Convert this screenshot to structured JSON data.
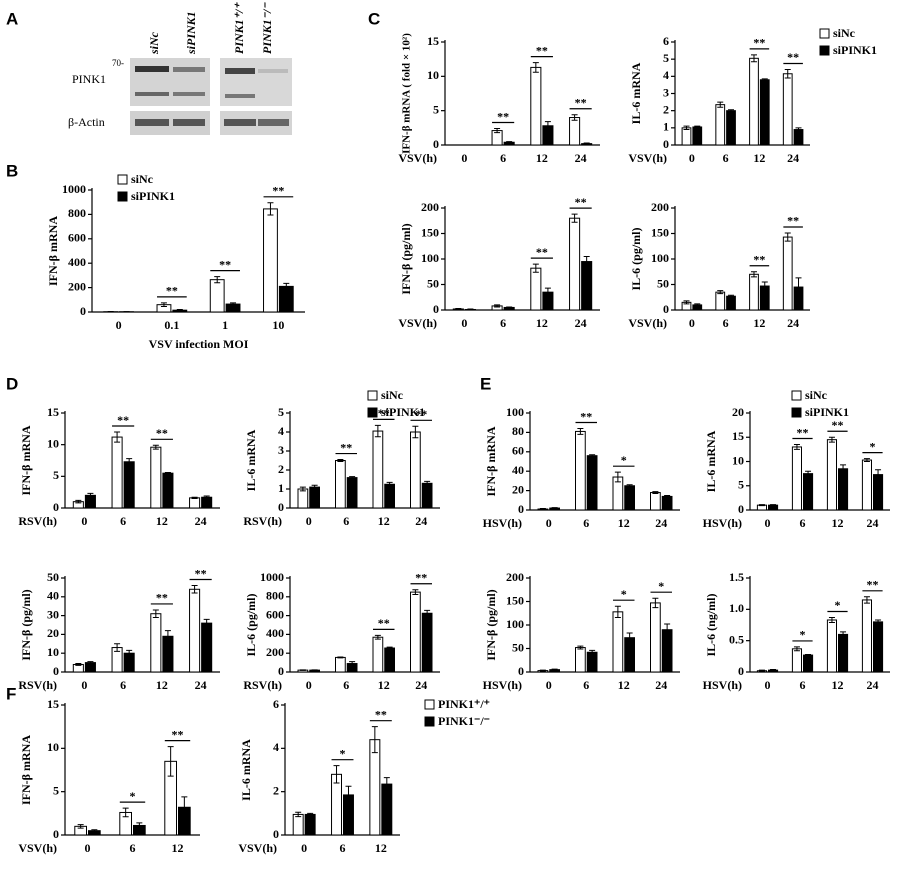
{
  "panels": [
    "A",
    "B",
    "C",
    "D",
    "E",
    "F"
  ],
  "blot": {
    "lanes": [
      "siNc",
      "siPINK1",
      "PINK1⁺/⁺",
      "PINK1⁻/⁻"
    ],
    "rows": [
      "PINK1",
      "β-Actin"
    ],
    "marker": "70-"
  },
  "chart_data": [
    {
      "type": "bar",
      "ylabel": "IFN-β mRNA",
      "xlabel": "VSV infection MOI",
      "categories": [
        "0",
        "0.1",
        "1",
        "10"
      ],
      "series": [
        {
          "name": "siNc",
          "color": "#ffffff",
          "values": [
            2,
            60,
            265,
            845
          ],
          "errors": [
            2,
            15,
            25,
            50
          ]
        },
        {
          "name": "siPINK1",
          "color": "#000000",
          "values": [
            2,
            15,
            65,
            210
          ],
          "errors": [
            1,
            5,
            10,
            25
          ]
        }
      ],
      "ylim": [
        0,
        1000
      ],
      "yticks": [
        0,
        200,
        400,
        600,
        800,
        1000
      ],
      "significance": [
        {
          "index": 1,
          "label": "**"
        },
        {
          "index": 2,
          "label": "**"
        },
        {
          "index": 3,
          "label": "**"
        }
      ],
      "legend": "upper left"
    },
    {
      "type": "bar",
      "ylabel": "IFN-β mRNA ( fold × 10²)",
      "xlabel": "VSV(h)",
      "categories": [
        "0",
        "6",
        "12",
        "24"
      ],
      "series": [
        {
          "name": "siNc",
          "color": "#ffffff",
          "values": [
            0,
            2.1,
            11.3,
            4.0
          ],
          "errors": [
            0,
            0.3,
            0.7,
            0.4
          ]
        },
        {
          "name": "siPINK1",
          "color": "#000000",
          "values": [
            0,
            0.4,
            2.8,
            0.2
          ],
          "errors": [
            0,
            0.1,
            0.6,
            0.1
          ]
        }
      ],
      "ylim": [
        0,
        15
      ],
      "yticks": [
        0,
        5,
        10,
        15
      ],
      "significance": [
        {
          "index": 1,
          "label": "**"
        },
        {
          "index": 2,
          "label": "**"
        },
        {
          "index": 3,
          "label": "**"
        }
      ]
    },
    {
      "type": "bar",
      "ylabel": "IL-6 mRNA",
      "xlabel": "VSV(h)",
      "categories": [
        "0",
        "6",
        "12",
        "24"
      ],
      "series": [
        {
          "name": "siNc",
          "color": "#ffffff",
          "values": [
            1.0,
            2.35,
            5.05,
            4.15
          ],
          "errors": [
            0.1,
            0.15,
            0.2,
            0.25
          ]
        },
        {
          "name": "siPINK1",
          "color": "#000000",
          "values": [
            1.05,
            2.0,
            3.8,
            0.9
          ],
          "errors": [
            0.05,
            0.05,
            0.05,
            0.1
          ]
        }
      ],
      "ylim": [
        0,
        6
      ],
      "yticks": [
        0,
        1,
        2,
        3,
        4,
        5,
        6
      ],
      "significance": [
        {
          "index": 2,
          "label": "**"
        },
        {
          "index": 3,
          "label": "**"
        }
      ],
      "legend": "upper right"
    },
    {
      "type": "bar",
      "ylabel": "IFN-β (pg/ml)",
      "xlabel": "VSV(h)",
      "categories": [
        "0",
        "6",
        "12",
        "24"
      ],
      "series": [
        {
          "name": "siNc",
          "color": "#ffffff",
          "values": [
            2,
            8,
            82,
            180
          ],
          "errors": [
            1,
            2,
            8,
            8
          ]
        },
        {
          "name": "siPINK1",
          "color": "#000000",
          "values": [
            1,
            5,
            35,
            95
          ],
          "errors": [
            1,
            1,
            8,
            10
          ]
        }
      ],
      "ylim": [
        0,
        200
      ],
      "yticks": [
        0,
        50,
        100,
        150,
        200
      ],
      "significance": [
        {
          "index": 2,
          "label": "**"
        },
        {
          "index": 3,
          "label": "**"
        }
      ]
    },
    {
      "type": "bar",
      "ylabel": "IL-6 (pg/ml)",
      "xlabel": "VSV(h)",
      "categories": [
        "0",
        "6",
        "12",
        "24"
      ],
      "series": [
        {
          "name": "siNc",
          "color": "#ffffff",
          "values": [
            15,
            35,
            70,
            143
          ],
          "errors": [
            3,
            3,
            5,
            8
          ]
        },
        {
          "name": "siPINK1",
          "color": "#000000",
          "values": [
            10,
            27,
            47,
            45
          ],
          "errors": [
            2,
            2,
            8,
            18
          ]
        }
      ],
      "ylim": [
        0,
        200
      ],
      "yticks": [
        0,
        50,
        100,
        150,
        200
      ],
      "significance": [
        {
          "index": 2,
          "label": "**"
        },
        {
          "index": 3,
          "label": "**"
        }
      ]
    },
    {
      "type": "bar",
      "ylabel": "IFN-β mRNA",
      "xlabel": "RSV(h)",
      "categories": [
        "0",
        "6",
        "12",
        "24"
      ],
      "series": [
        {
          "name": "siNc",
          "color": "#ffffff",
          "values": [
            1.0,
            11.2,
            9.6,
            1.6
          ],
          "errors": [
            0.2,
            0.8,
            0.3,
            0.1
          ]
        },
        {
          "name": "siPINK1",
          "color": "#000000",
          "values": [
            2.0,
            7.3,
            5.5,
            1.7
          ],
          "errors": [
            0.3,
            0.5,
            0.1,
            0.2
          ]
        }
      ],
      "ylim": [
        0,
        15
      ],
      "yticks": [
        0,
        5,
        10,
        15
      ],
      "significance": [
        {
          "index": 1,
          "label": "**"
        },
        {
          "index": 2,
          "label": "**"
        }
      ]
    },
    {
      "type": "bar",
      "ylabel": "IL-6 mRNA",
      "xlabel": "RSV(h)",
      "categories": [
        "0",
        "6",
        "12",
        "24"
      ],
      "series": [
        {
          "name": "siNc",
          "color": "#ffffff",
          "values": [
            1.0,
            2.5,
            4.05,
            4.0
          ],
          "errors": [
            0.1,
            0.05,
            0.3,
            0.3
          ]
        },
        {
          "name": "siPINK1",
          "color": "#000000",
          "values": [
            1.1,
            1.6,
            1.25,
            1.3
          ],
          "errors": [
            0.1,
            0.05,
            0.1,
            0.1
          ]
        }
      ],
      "ylim": [
        0,
        5
      ],
      "yticks": [
        0,
        1,
        2,
        3,
        4,
        5
      ],
      "significance": [
        {
          "index": 1,
          "label": "**"
        },
        {
          "index": 2,
          "label": "**"
        },
        {
          "index": 3,
          "label": "**"
        }
      ],
      "legend": "upper right"
    },
    {
      "type": "bar",
      "ylabel": "IFN-β (pg/ml)",
      "xlabel": "RSV(h)",
      "categories": [
        "0",
        "6",
        "12",
        "24"
      ],
      "series": [
        {
          "name": "siNc",
          "color": "#ffffff",
          "values": [
            4,
            13,
            31,
            44
          ],
          "errors": [
            0.5,
            2,
            2,
            2
          ]
        },
        {
          "name": "siPINK1",
          "color": "#000000",
          "values": [
            5,
            10,
            19,
            26
          ],
          "errors": [
            0.5,
            1.5,
            3,
            2
          ]
        }
      ],
      "ylim": [
        0,
        50
      ],
      "yticks": [
        0,
        10,
        20,
        30,
        40,
        50
      ],
      "significance": [
        {
          "index": 2,
          "label": "**"
        },
        {
          "index": 3,
          "label": "**"
        }
      ]
    },
    {
      "type": "bar",
      "ylabel": "IL-6 (pg/ml)",
      "xlabel": "RSV(h)",
      "categories": [
        "0",
        "6",
        "12",
        "24"
      ],
      "series": [
        {
          "name": "siNc",
          "color": "#ffffff",
          "values": [
            20,
            155,
            370,
            850
          ],
          "errors": [
            3,
            5,
            20,
            25
          ]
        },
        {
          "name": "siPINK1",
          "color": "#000000",
          "values": [
            20,
            90,
            255,
            625
          ],
          "errors": [
            3,
            20,
            10,
            30
          ]
        }
      ],
      "ylim": [
        0,
        1000
      ],
      "yticks": [
        0,
        200,
        400,
        600,
        800,
        1000
      ],
      "significance": [
        {
          "index": 2,
          "label": "**"
        },
        {
          "index": 3,
          "label": "**"
        }
      ]
    },
    {
      "type": "bar",
      "ylabel": "IFN-β mRNA",
      "xlabel": "HSV(h)",
      "categories": [
        "0",
        "6",
        "12",
        "24"
      ],
      "series": [
        {
          "name": "siNc",
          "color": "#ffffff",
          "values": [
            1,
            81,
            34,
            18
          ],
          "errors": [
            0.5,
            3,
            5,
            1
          ]
        },
        {
          "name": "siPINK1",
          "color": "#000000",
          "values": [
            2,
            56,
            25,
            14
          ],
          "errors": [
            0.5,
            1,
            1,
            1
          ]
        }
      ],
      "ylim": [
        0,
        100
      ],
      "yticks": [
        0,
        20,
        40,
        60,
        80,
        100
      ],
      "significance": [
        {
          "index": 1,
          "label": "**"
        },
        {
          "index": 2,
          "label": "*"
        }
      ]
    },
    {
      "type": "bar",
      "ylabel": "IL-6 mRNA",
      "xlabel": "HSV(h)",
      "categories": [
        "0",
        "6",
        "12",
        "24"
      ],
      "series": [
        {
          "name": "siNc",
          "color": "#ffffff",
          "values": [
            1,
            13,
            14.5,
            10.3
          ],
          "errors": [
            0.1,
            0.5,
            0.5,
            0.3
          ]
        },
        {
          "name": "siPINK1",
          "color": "#000000",
          "values": [
            1,
            7.5,
            8.5,
            7.3
          ],
          "errors": [
            0.1,
            0.5,
            0.8,
            1.0
          ]
        }
      ],
      "ylim": [
        0,
        20
      ],
      "yticks": [
        0,
        5,
        10,
        15,
        20
      ],
      "significance": [
        {
          "index": 1,
          "label": "**"
        },
        {
          "index": 2,
          "label": "**"
        },
        {
          "index": 3,
          "label": "*"
        }
      ],
      "legend": "upper right"
    },
    {
      "type": "bar",
      "ylabel": "IFN-β (pg/ml)",
      "xlabel": "HSV(h)",
      "categories": [
        "0",
        "6",
        "12",
        "24"
      ],
      "series": [
        {
          "name": "siNc",
          "color": "#ffffff",
          "values": [
            3,
            52,
            128,
            147
          ],
          "errors": [
            1,
            3,
            12,
            10
          ]
        },
        {
          "name": "siPINK1",
          "color": "#000000",
          "values": [
            5,
            42,
            73,
            90
          ],
          "errors": [
            1,
            4,
            10,
            12
          ]
        }
      ],
      "ylim": [
        0,
        200
      ],
      "yticks": [
        0,
        50,
        100,
        150,
        200
      ],
      "significance": [
        {
          "index": 2,
          "label": "*"
        },
        {
          "index": 3,
          "label": "*"
        }
      ]
    },
    {
      "type": "bar",
      "ylabel": "IL-6 (ng/ml)",
      "xlabel": "HSV(h)",
      "categories": [
        "0",
        "6",
        "12",
        "24"
      ],
      "series": [
        {
          "name": "siNc",
          "color": "#ffffff",
          "values": [
            0.02,
            0.37,
            0.83,
            1.15
          ],
          "errors": [
            0.01,
            0.03,
            0.04,
            0.05
          ]
        },
        {
          "name": "siPINK1",
          "color": "#000000",
          "values": [
            0.03,
            0.27,
            0.6,
            0.8
          ],
          "errors": [
            0.01,
            0.01,
            0.04,
            0.03
          ]
        }
      ],
      "ylim": [
        0,
        1.5
      ],
      "yticks": [
        0,
        0.5,
        {
          "value": 1,
          "label": "1.0"
        },
        1.5
      ],
      "significance": [
        {
          "index": 1,
          "label": "*"
        },
        {
          "index": 2,
          "label": "*"
        },
        {
          "index": 3,
          "label": "**"
        }
      ]
    },
    {
      "type": "bar",
      "ylabel": "IFN-β mRNA",
      "xlabel": "VSV(h)",
      "categories": [
        "0",
        "6",
        "12"
      ],
      "series": [
        {
          "name": "PINK1⁺/⁺",
          "color": "#ffffff",
          "values": [
            1.0,
            2.6,
            8.5
          ],
          "errors": [
            0.2,
            0.5,
            1.7
          ]
        },
        {
          "name": "PINK1⁻/⁻",
          "color": "#000000",
          "values": [
            0.5,
            1.1,
            3.2
          ],
          "errors": [
            0.1,
            0.3,
            1.2
          ]
        }
      ],
      "ylim": [
        0,
        15
      ],
      "yticks": [
        0,
        5,
        10,
        15
      ],
      "significance": [
        {
          "index": 1,
          "label": "*"
        },
        {
          "index": 2,
          "label": "**"
        }
      ]
    },
    {
      "type": "bar",
      "ylabel": "IL-6 mRNA",
      "xlabel": "VSV(h)",
      "categories": [
        "0",
        "6",
        "12"
      ],
      "series": [
        {
          "name": "PINK1⁺/⁺",
          "color": "#ffffff",
          "values": [
            0.95,
            2.8,
            4.4
          ],
          "errors": [
            0.1,
            0.4,
            0.6
          ]
        },
        {
          "name": "PINK1⁻/⁻",
          "color": "#000000",
          "values": [
            0.95,
            1.85,
            2.35
          ],
          "errors": [
            0.05,
            0.4,
            0.3
          ]
        }
      ],
      "ylim": [
        0,
        6
      ],
      "yticks": [
        0,
        2,
        4,
        6
      ],
      "significance": [
        {
          "index": 1,
          "label": "*"
        },
        {
          "index": 2,
          "label": "**"
        }
      ],
      "legend": "upper right"
    }
  ]
}
